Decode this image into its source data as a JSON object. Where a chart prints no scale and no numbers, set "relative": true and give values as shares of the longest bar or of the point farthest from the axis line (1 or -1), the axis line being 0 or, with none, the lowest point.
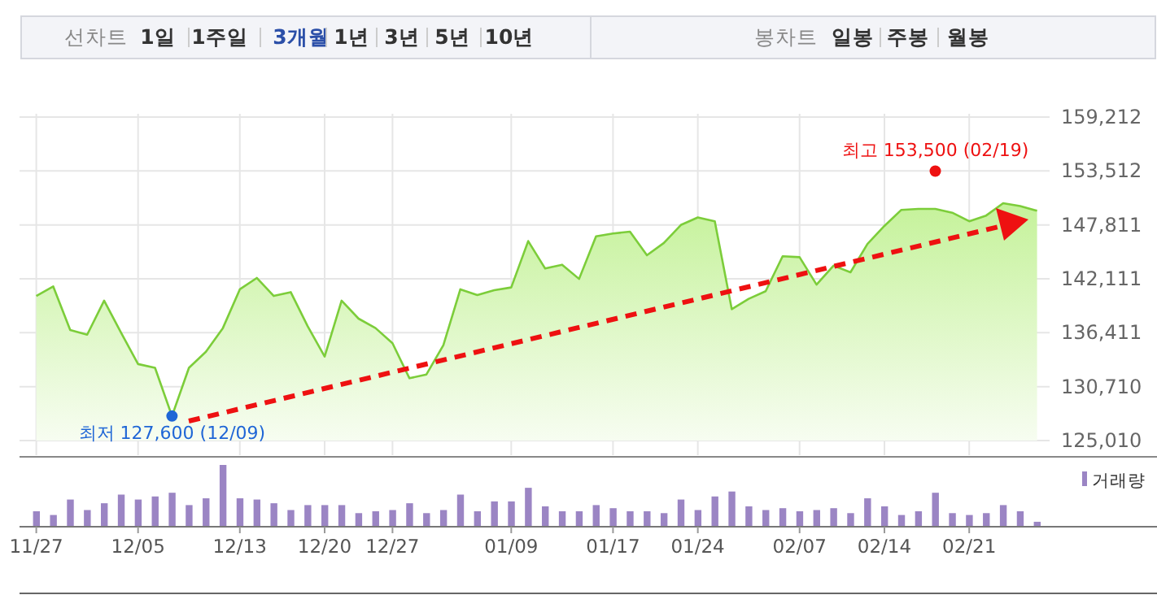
{
  "chart_data": [
    {
      "type": "other",
      "annotations": [
        "선차트",
        "1일",
        "1주일",
        "3개월",
        "1년",
        "3년",
        "5년",
        "10년",
        "봉차트",
        "일봉",
        "주봉",
        "월봉"
      ]
    },
    {
      "type": "area",
      "categories": [
        null,
        null,
        null,
        null,
        null,
        null,
        null,
        null,
        null,
        null,
        null,
        null,
        null,
        null,
        null,
        null,
        null,
        null,
        null,
        null,
        null,
        null,
        null,
        null,
        null,
        null,
        null,
        null,
        null,
        null,
        null,
        null,
        null,
        null,
        null,
        null,
        null,
        null,
        null,
        null,
        null,
        null,
        null,
        null,
        null,
        null,
        null,
        null,
        null,
        null,
        null,
        null,
        null,
        null,
        null,
        null,
        null,
        null,
        null,
        null
      ],
      "series": [
        {
          "type": "area",
          "color": "#7ccd3a",
          "values": [
            140300,
            141300,
            136700,
            136200,
            139800,
            136400,
            133100,
            132700,
            127600,
            132700,
            134400,
            136900,
            141000,
            142200,
            140300,
            140700,
            137100,
            133900,
            139800,
            137900,
            136900,
            135300,
            131600,
            132000,
            135100,
            141000,
            140400,
            140900,
            141200,
            146100,
            143200,
            143600,
            142100,
            146600,
            146900,
            147100,
            144600,
            145900,
            147800,
            148600,
            148200,
            138900,
            140000,
            140800,
            144500,
            144400,
            141500,
            143500,
            142800,
            145800,
            147700,
            149400,
            149500,
            149500,
            149100,
            148200,
            148800,
            150100,
            149800,
            149300
          ]
        },
        {
          "type": "scatter",
          "marker": "circle",
          "color": "#1f66d6",
          "values": [
            null,
            null,
            null,
            null,
            null,
            null,
            null,
            null,
            127600,
            null,
            null,
            null,
            null,
            null,
            null,
            null,
            null,
            null,
            null,
            null,
            null,
            null,
            null,
            null,
            null,
            null,
            null,
            null,
            null,
            null,
            null,
            null,
            null,
            null,
            null,
            null,
            null,
            null,
            null,
            null,
            null,
            null,
            null,
            null,
            null,
            null,
            null,
            null,
            null,
            null,
            null,
            null,
            null,
            null,
            null,
            null,
            null,
            null,
            null,
            null
          ]
        },
        {
          "type": "scatter",
          "marker": "circle",
          "color": "#ee1111",
          "values": [
            null,
            null,
            null,
            null,
            null,
            null,
            null,
            null,
            null,
            null,
            null,
            null,
            null,
            null,
            null,
            null,
            null,
            null,
            null,
            null,
            null,
            null,
            null,
            null,
            null,
            null,
            null,
            null,
            null,
            null,
            null,
            null,
            null,
            null,
            null,
            null,
            null,
            null,
            null,
            null,
            null,
            null,
            null,
            null,
            null,
            null,
            null,
            null,
            null,
            null,
            null,
            null,
            null,
            153500,
            null,
            null,
            null,
            null,
            null,
            null
          ]
        }
      ],
      "annotations": [
        {
          "text": "최저 127,600 (12/09)",
          "y": 127600
        },
        {
          "text": "최고 153,500 (02/19)",
          "y": 153500
        }
      ],
      "ylim": [
        125010,
        159212
      ],
      "yticks": [
        {
          "value": 125010,
          "label": "125,010"
        },
        {
          "value": 130710,
          "label": "130,710"
        },
        {
          "value": 136411,
          "label": "136,411"
        },
        {
          "value": 142111,
          "label": "142,111"
        },
        {
          "value": 147811,
          "label": "147,811"
        },
        {
          "value": 153512,
          "label": "153,512"
        },
        {
          "value": 159212,
          "label": "159,212"
        }
      ],
      "grid": true,
      "tick_labels": "y"
    },
    {
      "type": "bar",
      "relative": true,
      "categories": [
        "11/27",
        null,
        null,
        null,
        null,
        null,
        "12/05",
        null,
        null,
        null,
        null,
        null,
        "12/13",
        null,
        null,
        null,
        null,
        "12/20",
        null,
        null,
        null,
        "12/27",
        null,
        null,
        null,
        null,
        null,
        null,
        "01/09",
        null,
        null,
        null,
        null,
        null,
        "01/17",
        null,
        null,
        null,
        null,
        "01/24",
        null,
        null,
        null,
        null,
        null,
        "02/07",
        null,
        null,
        null,
        null,
        "02/14",
        null,
        null,
        null,
        null,
        "02/21",
        null,
        null,
        null,
        null
      ],
      "series": [
        {
          "name": "거래량",
          "color": "#9b85c4",
          "values": [
            0.25,
            0.19,
            0.44,
            0.27,
            0.38,
            0.52,
            0.44,
            0.49,
            0.55,
            0.35,
            0.46,
            1,
            0.46,
            0.44,
            0.38,
            0.27,
            0.35,
            0.35,
            0.35,
            0.22,
            0.25,
            0.27,
            0.38,
            0.22,
            0.27,
            0.52,
            0.25,
            0.41,
            0.41,
            0.63,
            0.33,
            0.25,
            0.25,
            0.35,
            0.3,
            0.25,
            0.25,
            0.22,
            0.44,
            0.27,
            0.49,
            0.57,
            0.33,
            0.27,
            0.3,
            0.25,
            0.27,
            0.3,
            0.22,
            0.46,
            0.33,
            0.19,
            0.25,
            0.55,
            0.22,
            0.19,
            0.22,
            0.35,
            0.25,
            0.08
          ]
        }
      ],
      "legend": "top right",
      "tick_labels": "x"
    }
  ]
}
